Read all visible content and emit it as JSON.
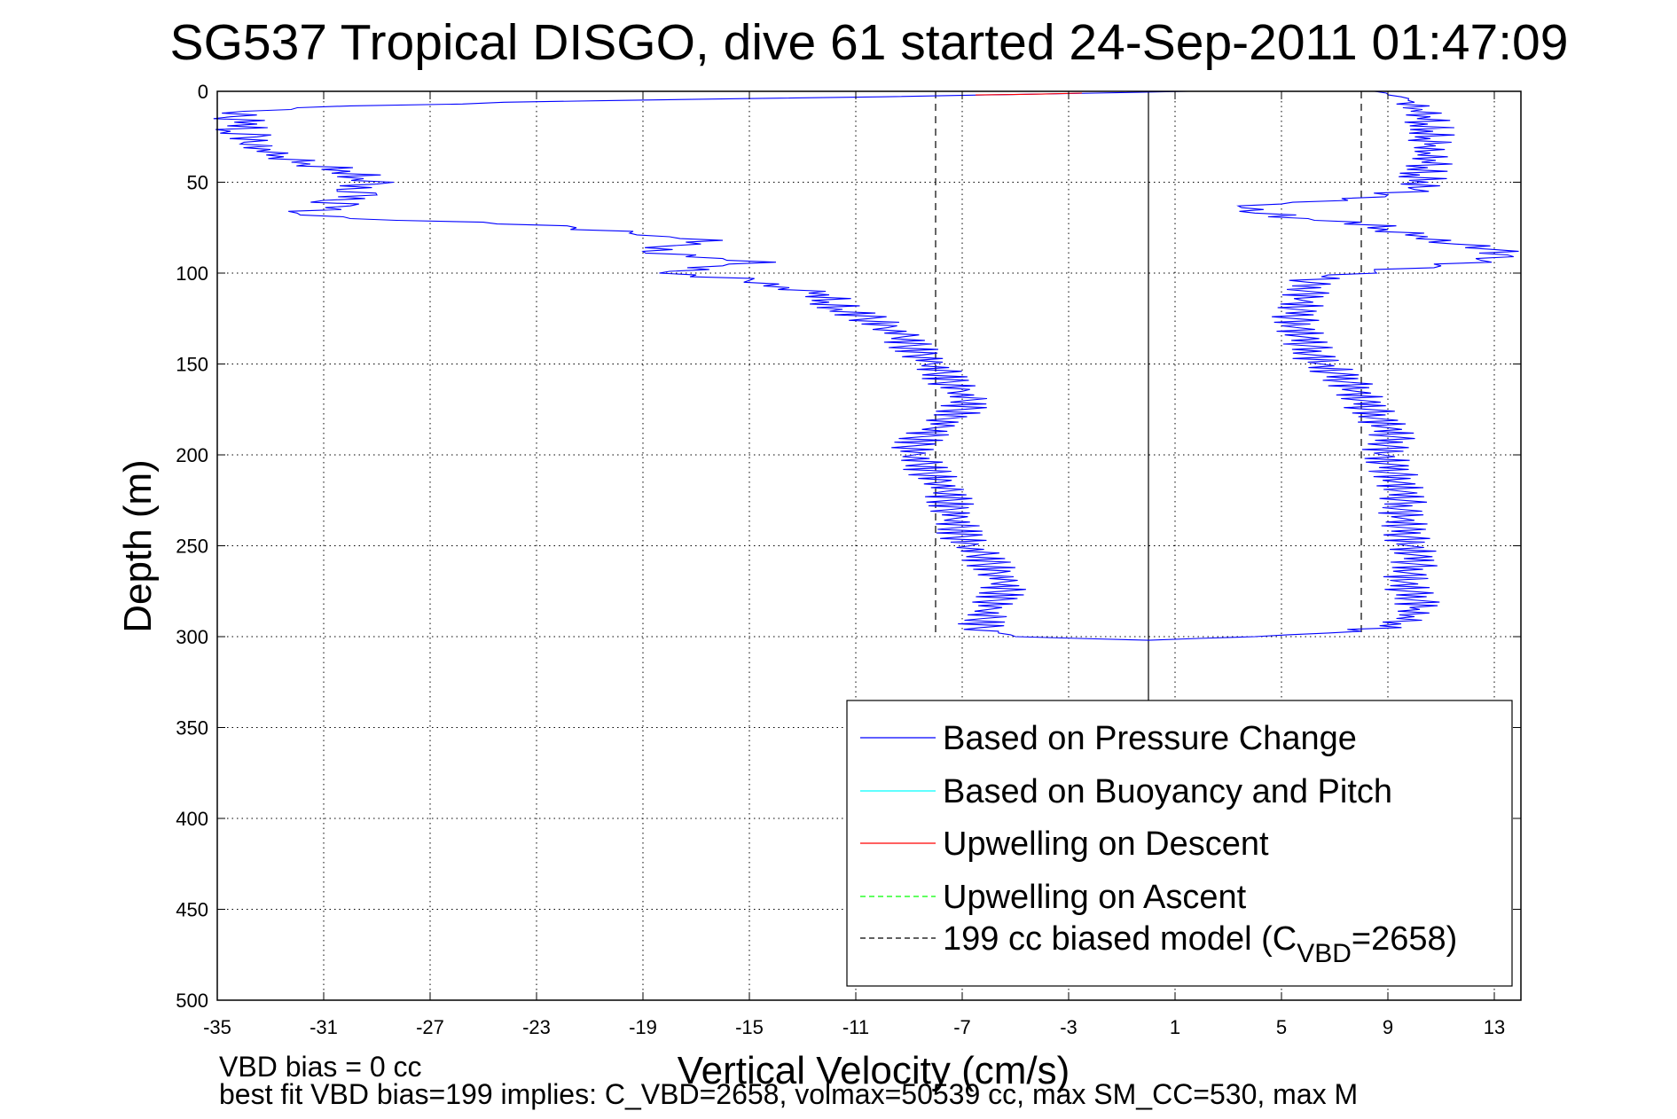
{
  "chart_data": {
    "type": "line",
    "title": "SG537 Tropical DISGO, dive 61 started 24-Sep-2011 01:47:09",
    "xlabel": "Vertical Velocity (cm/s)",
    "ylabel": "Depth (m)",
    "xlim": [
      -35,
      14
    ],
    "ylim": [
      500,
      0
    ],
    "y_reversed": true,
    "grid": true,
    "x_ticks": [
      "-35",
      "-31",
      "-27",
      "-23",
      "-19",
      "-15",
      "-11",
      "-7",
      "-3",
      "1",
      "5",
      "9",
      "13"
    ],
    "y_ticks": [
      "0",
      "50",
      "100",
      "150",
      "200",
      "250",
      "300",
      "350",
      "400",
      "450",
      "500"
    ],
    "legend_position": "bottom-right",
    "legend": [
      {
        "label": "Based on Pressure Change",
        "color": "#0000ff",
        "style": "solid"
      },
      {
        "label": "Based on Buoyancy and Pitch",
        "color": "#00ffff",
        "style": "solid"
      },
      {
        "label": "Upwelling on Descent",
        "color": "#ff0000",
        "style": "solid"
      },
      {
        "label": "Upwelling on Ascent",
        "color": "#00ff00",
        "style": "dashed"
      },
      {
        "label": "199 cc biased model (C",
        "sub": "VBD",
        "suffix": "=2658)",
        "color": "#000000",
        "style": "dashed"
      }
    ],
    "reference_lines": {
      "zero_line_x": 0,
      "model_descent_x": -8,
      "model_ascent_x": 8
    },
    "series": [
      {
        "name": "Based on Pressure Change",
        "color": "#0000ff",
        "points": [
          [
            1.5,
            0
          ],
          [
            -2,
            1
          ],
          [
            -10,
            3
          ],
          [
            -20,
            5
          ],
          [
            -30,
            8
          ],
          [
            -34,
            11
          ],
          [
            -34.5,
            14
          ],
          [
            -33.5,
            18
          ],
          [
            -34.5,
            22
          ],
          [
            -33.5,
            25
          ],
          [
            -34,
            28
          ],
          [
            -33,
            32
          ],
          [
            -32.5,
            36
          ],
          [
            -31.5,
            40
          ],
          [
            -30,
            44
          ],
          [
            -29.5,
            48
          ],
          [
            -29,
            51
          ],
          [
            -30.5,
            54
          ],
          [
            -29,
            57
          ],
          [
            -31,
            60
          ],
          [
            -30,
            63
          ],
          [
            -32,
            67
          ],
          [
            -30,
            70
          ],
          [
            -25,
            72
          ],
          [
            -21.5,
            75
          ],
          [
            -19.5,
            78
          ],
          [
            -18,
            80
          ],
          [
            -16,
            82
          ],
          [
            -18,
            85
          ],
          [
            -19,
            88
          ],
          [
            -17,
            90
          ],
          [
            -16,
            92
          ],
          [
            -14,
            94
          ],
          [
            -16,
            96
          ],
          [
            -18,
            99
          ],
          [
            -17,
            101
          ],
          [
            -15,
            104
          ],
          [
            -13.5,
            108
          ],
          [
            -12,
            112
          ],
          [
            -12,
            116
          ],
          [
            -11.5,
            120
          ],
          [
            -10.5,
            125
          ],
          [
            -9.8,
            130
          ],
          [
            -9.2,
            135
          ],
          [
            -9,
            140
          ],
          [
            -8.5,
            145
          ],
          [
            -8.2,
            150
          ],
          [
            -7.8,
            155
          ],
          [
            -7.5,
            160
          ],
          [
            -7,
            165
          ],
          [
            -6.8,
            170
          ],
          [
            -7,
            175
          ],
          [
            -7.5,
            180
          ],
          [
            -8,
            185
          ],
          [
            -8.5,
            190
          ],
          [
            -8.8,
            195
          ],
          [
            -8.8,
            200
          ],
          [
            -8.5,
            205
          ],
          [
            -8.2,
            210
          ],
          [
            -7.8,
            215
          ],
          [
            -7.6,
            220
          ],
          [
            -7.5,
            225
          ],
          [
            -7.4,
            230
          ],
          [
            -7.3,
            235
          ],
          [
            -7.2,
            240
          ],
          [
            -7,
            245
          ],
          [
            -6.7,
            250
          ],
          [
            -6.3,
            255
          ],
          [
            -6,
            260
          ],
          [
            -5.7,
            265
          ],
          [
            -5.5,
            270
          ],
          [
            -5.5,
            275
          ],
          [
            -5.7,
            280
          ],
          [
            -6,
            285
          ],
          [
            -6.2,
            290
          ],
          [
            -6.3,
            295
          ],
          [
            -5,
            300
          ],
          [
            0,
            302
          ],
          [
            4,
            300
          ],
          [
            8,
            297
          ],
          [
            9.5,
            293
          ],
          [
            10,
            289
          ],
          [
            10.2,
            285
          ],
          [
            10.1,
            280
          ],
          [
            9.8,
            275
          ],
          [
            9.6,
            270
          ],
          [
            9.8,
            265
          ],
          [
            10,
            260
          ],
          [
            10,
            255
          ],
          [
            9.8,
            250
          ],
          [
            9.7,
            245
          ],
          [
            9.6,
            240
          ],
          [
            9.6,
            235
          ],
          [
            9.5,
            230
          ],
          [
            9.6,
            225
          ],
          [
            9.5,
            220
          ],
          [
            9.4,
            215
          ],
          [
            9.2,
            210
          ],
          [
            9,
            205
          ],
          [
            8.8,
            200
          ],
          [
            9,
            195
          ],
          [
            9.2,
            190
          ],
          [
            9,
            185
          ],
          [
            8.6,
            180
          ],
          [
            8.3,
            175
          ],
          [
            8,
            170
          ],
          [
            7.8,
            165
          ],
          [
            7.5,
            160
          ],
          [
            7,
            155
          ],
          [
            6.5,
            150
          ],
          [
            6.2,
            145
          ],
          [
            6,
            140
          ],
          [
            5.8,
            135
          ],
          [
            5.6,
            130
          ],
          [
            5.5,
            125
          ],
          [
            5.6,
            120
          ],
          [
            5.8,
            115
          ],
          [
            6,
            110
          ],
          [
            6,
            105
          ],
          [
            6.5,
            102
          ],
          [
            8.5,
            99
          ],
          [
            11,
            96
          ],
          [
            12.5,
            93
          ],
          [
            13.5,
            90
          ],
          [
            13,
            87
          ],
          [
            11.5,
            84
          ],
          [
            10.5,
            80
          ],
          [
            9,
            76
          ],
          [
            8,
            72
          ],
          [
            6,
            70
          ],
          [
            4,
            67
          ],
          [
            3.5,
            64
          ],
          [
            5,
            62
          ],
          [
            7.5,
            60
          ],
          [
            9,
            57
          ],
          [
            10,
            54
          ],
          [
            10.5,
            50
          ],
          [
            10.2,
            46
          ],
          [
            10.5,
            42
          ],
          [
            10.8,
            38
          ],
          [
            10.6,
            34
          ],
          [
            10.8,
            30
          ],
          [
            10.6,
            26
          ],
          [
            10.7,
            22
          ],
          [
            10.5,
            18
          ],
          [
            10.6,
            14
          ],
          [
            10.3,
            10
          ],
          [
            10,
            6
          ],
          [
            9.5,
            3
          ],
          [
            8.5,
            0
          ]
        ]
      },
      {
        "name": "Upwelling on Descent",
        "color": "#ff0000",
        "points": [
          [
            -6.5,
            2
          ],
          [
            -4,
            1.5
          ],
          [
            -2.5,
            1
          ]
        ]
      }
    ]
  },
  "footer": {
    "line1": "VBD bias = 0 cc",
    "line2": "best fit VBD bias=199 implies: C_VBD=2658, volmax=50539 cc, max SM_CC=530, max M"
  }
}
